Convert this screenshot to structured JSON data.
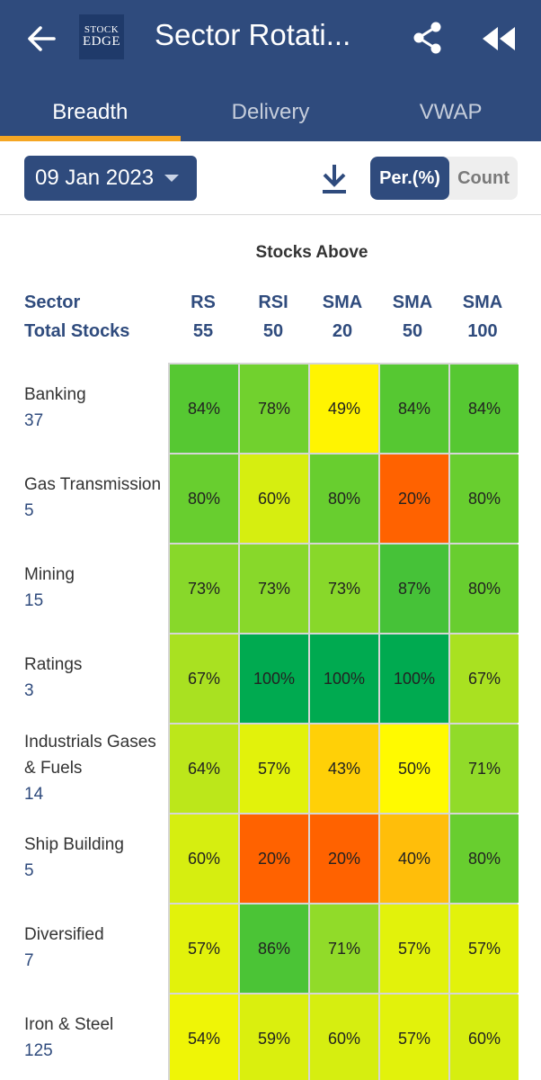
{
  "appbar": {
    "title": "Sector Rotati...",
    "logo_line1": "STOCK",
    "logo_line2": "EDGE",
    "background": "#2f4b7d"
  },
  "icons": {
    "back": "arrow-left",
    "share": "share",
    "rewind": "fast-rewind",
    "download": "download",
    "dropdown": "caret-down"
  },
  "tabs": [
    {
      "label": "Breadth",
      "active": true
    },
    {
      "label": "Delivery",
      "active": false
    },
    {
      "label": "VWAP",
      "active": false
    }
  ],
  "toolbar": {
    "date": "09 Jan 2023",
    "toggle_percent": "Per.(%)",
    "toggle_count": "Count",
    "selected": "Per.(%)"
  },
  "table": {
    "group_header": "Stocks Above",
    "sector_header": "Sector",
    "total_header": "Total Stocks",
    "columns": [
      {
        "name": "RS",
        "period": "55"
      },
      {
        "name": "RSI",
        "period": "50"
      },
      {
        "name": "SMA",
        "period": "20"
      },
      {
        "name": "SMA",
        "period": "50"
      },
      {
        "name": "SMA",
        "period": "100"
      }
    ],
    "rows": [
      {
        "sector": "Banking",
        "total": "37",
        "values": [
          84,
          78,
          49,
          84,
          84
        ],
        "labels": [
          "84%",
          "78%",
          "49%",
          "84%",
          "84%"
        ]
      },
      {
        "sector": "Gas Transmission",
        "total": "5",
        "values": [
          80,
          60,
          80,
          20,
          80
        ],
        "labels": [
          "80%",
          "60%",
          "80%",
          "20%",
          "80%"
        ]
      },
      {
        "sector": "Mining",
        "total": "15",
        "values": [
          73,
          73,
          73,
          87,
          80
        ],
        "labels": [
          "73%",
          "73%",
          "73%",
          "87%",
          "80%"
        ]
      },
      {
        "sector": "Ratings",
        "total": "3",
        "values": [
          67,
          100,
          100,
          100,
          67
        ],
        "labels": [
          "67%",
          "100%",
          "100%",
          "100%",
          "67%"
        ]
      },
      {
        "sector": "Industrials Gases & Fuels",
        "total": "14",
        "values": [
          64,
          57,
          43,
          50,
          71
        ],
        "labels": [
          "64%",
          "57%",
          "43%",
          "50%",
          "71%"
        ]
      },
      {
        "sector": "Ship Building",
        "total": "5",
        "values": [
          60,
          20,
          20,
          40,
          80
        ],
        "labels": [
          "60%",
          "20%",
          "20%",
          "40%",
          "80%"
        ]
      },
      {
        "sector": "Diversified",
        "total": "7",
        "values": [
          57,
          86,
          71,
          57,
          57
        ],
        "labels": [
          "57%",
          "86%",
          "71%",
          "57%",
          "57%"
        ]
      },
      {
        "sector": "Iron & Steel",
        "total": "125",
        "values": [
          54,
          59,
          60,
          57,
          60
        ],
        "labels": [
          "54%",
          "59%",
          "60%",
          "57%",
          "60%"
        ]
      }
    ]
  },
  "colors": {
    "primary": "#2f4b7d",
    "tab_indicator": "#f5a623"
  }
}
